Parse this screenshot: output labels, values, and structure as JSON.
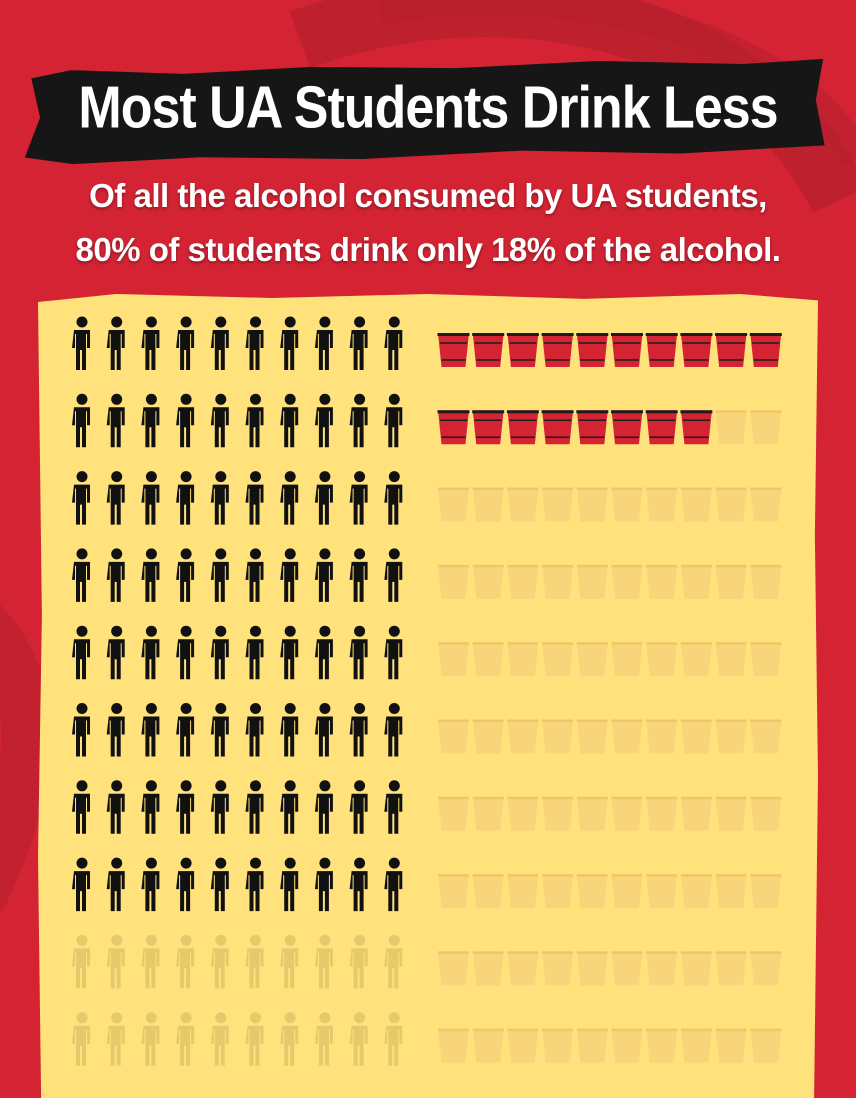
{
  "header": {
    "title": "Most UA Students Drink Less",
    "subtitle_line1": "Of all the alcohol consumed by UA students,",
    "subtitle_line2": "80% of students drink only 18% of the alcohol."
  },
  "colors": {
    "background": "#d42434",
    "panel": "#ffe27c",
    "person_highlight": "#111111",
    "person_faded": "#e6c96b",
    "cup_highlight": "#d42434",
    "cup_faded": "#f8d57a"
  },
  "chart_data": {
    "type": "pictogram",
    "series": [
      {
        "name": "students",
        "icon": "person-icon",
        "total": 100,
        "highlighted": 80,
        "grid": [
          10,
          10
        ]
      },
      {
        "name": "alcohol",
        "icon": "red-cup-icon",
        "total": 100,
        "highlighted": 18,
        "grid": [
          10,
          10
        ]
      }
    ]
  }
}
